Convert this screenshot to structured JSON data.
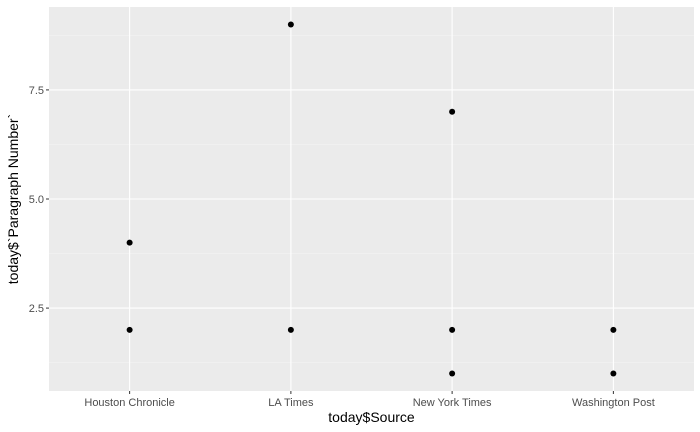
{
  "chart_data": {
    "type": "scatter",
    "title": "",
    "xlabel": "today$Source",
    "ylabel": "today$`Paragraph Number`",
    "categories": [
      "Houston Chronicle",
      "LA Times",
      "New York Times",
      "Washington Post"
    ],
    "points": [
      {
        "x": "Houston Chronicle",
        "y": 2
      },
      {
        "x": "Houston Chronicle",
        "y": 4
      },
      {
        "x": "LA Times",
        "y": 2
      },
      {
        "x": "LA Times",
        "y": 9
      },
      {
        "x": "New York Times",
        "y": 1
      },
      {
        "x": "New York Times",
        "y": 2
      },
      {
        "x": "New York Times",
        "y": 7
      },
      {
        "x": "Washington Post",
        "y": 1
      },
      {
        "x": "Washington Post",
        "y": 2
      }
    ],
    "yticks": [
      2.5,
      5.0,
      7.5
    ],
    "ytick_labels": [
      "2.5",
      "5.0",
      "7.5"
    ],
    "ylim": [
      0.6,
      9.4
    ],
    "grid": true,
    "colors": {
      "panel": "#ebebeb",
      "grid_major": "#ffffff",
      "grid_minor": "#f4f4f4",
      "point": "#000000",
      "tick": "#333333"
    }
  }
}
